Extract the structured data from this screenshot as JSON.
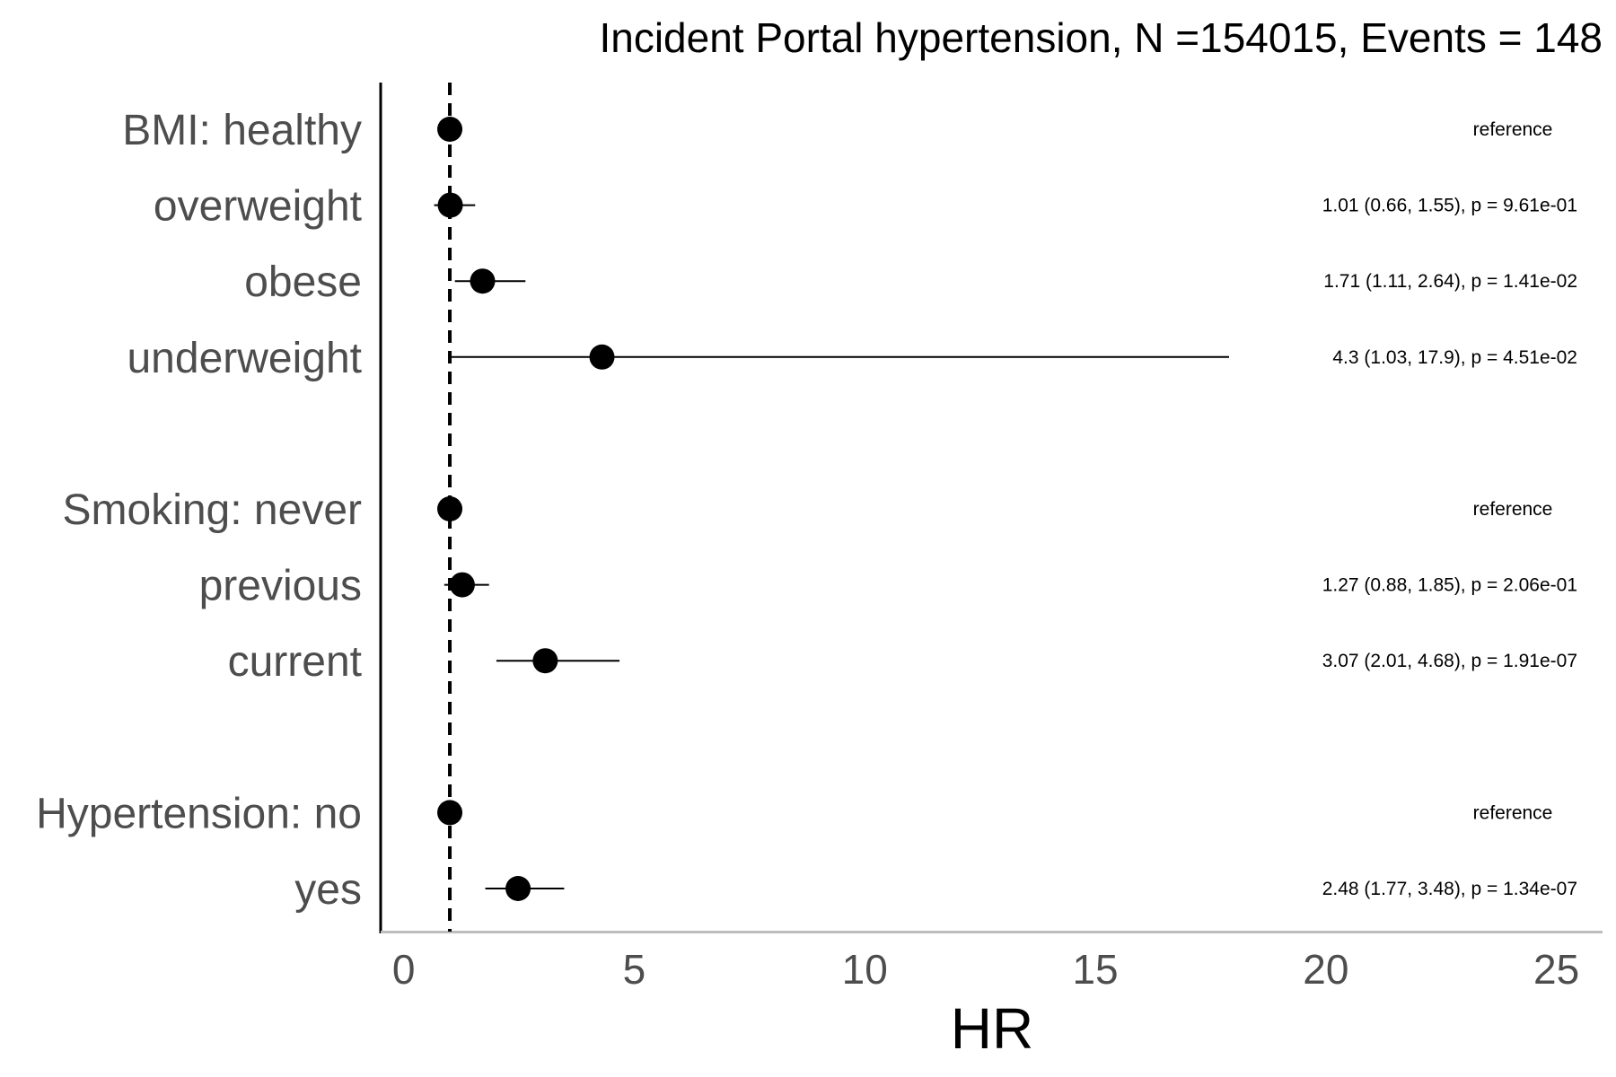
{
  "chart_data": {
    "type": "scatter",
    "title": "Incident Portal hypertension, N =154015, Events = 148",
    "xlabel": "HR",
    "ylabel": "",
    "xlim": [
      -0.5,
      26
    ],
    "xticks": [
      0,
      5,
      10,
      15,
      20,
      25
    ],
    "xtick_labels": [
      "0",
      "5",
      "10",
      "15",
      "20",
      "25"
    ],
    "reference_line": 1,
    "grid": false,
    "point_color": "#000000",
    "reference_line_style": "dashed",
    "rows": [
      {
        "label": "BMI: healthy",
        "hr": 1,
        "lower": 1,
        "upper": 1,
        "annotation": "reference",
        "is_reference": true
      },
      {
        "label": "overweight",
        "hr": 1.01,
        "lower": 0.66,
        "upper": 1.55,
        "annotation": "1.01 (0.66, 1.55), p = 9.61e-01",
        "is_reference": false
      },
      {
        "label": "obese",
        "hr": 1.71,
        "lower": 1.11,
        "upper": 2.64,
        "annotation": "1.71 (1.11, 2.64), p = 1.41e-02",
        "is_reference": false
      },
      {
        "label": "underweight",
        "hr": 4.3,
        "lower": 1.03,
        "upper": 17.9,
        "annotation": "4.3 (1.03, 17.9), p = 4.51e-02",
        "is_reference": false
      },
      {
        "spacer": true
      },
      {
        "label": "Smoking: never",
        "hr": 1,
        "lower": 1,
        "upper": 1,
        "annotation": "reference",
        "is_reference": true
      },
      {
        "label": "previous",
        "hr": 1.27,
        "lower": 0.88,
        "upper": 1.85,
        "annotation": "1.27 (0.88, 1.85), p = 2.06e-01",
        "is_reference": false
      },
      {
        "label": "current",
        "hr": 3.07,
        "lower": 2.01,
        "upper": 4.68,
        "annotation": "3.07 (2.01, 4.68), p = 1.91e-07",
        "is_reference": false
      },
      {
        "spacer": true
      },
      {
        "label": "Hypertension: no",
        "hr": 1,
        "lower": 1,
        "upper": 1,
        "annotation": "reference",
        "is_reference": true
      },
      {
        "label": "yes",
        "hr": 2.48,
        "lower": 1.77,
        "upper": 3.48,
        "annotation": "2.48 (1.77, 3.48), p = 1.34e-07",
        "is_reference": false
      }
    ]
  }
}
